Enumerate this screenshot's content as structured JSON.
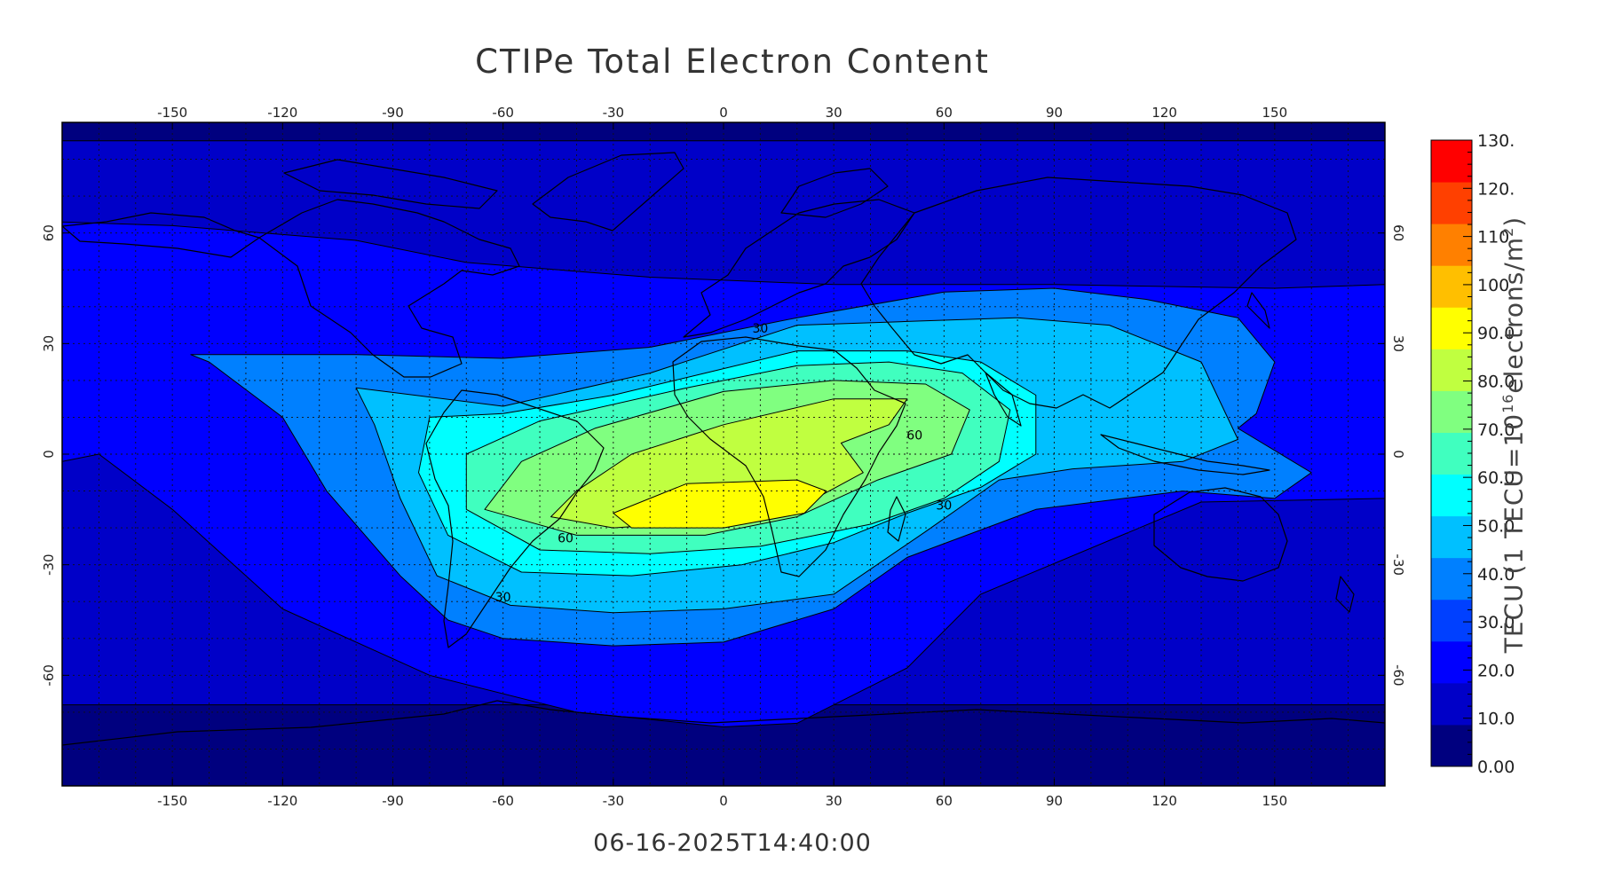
{
  "title": "CTIPe Total Electron Content",
  "timestamp": "06-16-2025T14:40:00",
  "colorbar": {
    "title_prefix": "TECU (1 TECU=10",
    "title_exp": "16",
    "title_mid": "electrons/m",
    "title_exp2": "2",
    "title_suffix": ")",
    "labels": [
      "0.00",
      "10.0",
      "20.0",
      "30.0",
      "40.0",
      "50.0",
      "60.0",
      "70.0",
      "80.0",
      "90.0",
      "100.",
      "110.",
      "120.",
      "130."
    ],
    "range": [
      0,
      130
    ],
    "colors": [
      "#00007f",
      "#0000c8",
      "#0000ff",
      "#0040ff",
      "#0080ff",
      "#00c0ff",
      "#00ffff",
      "#40ffbf",
      "#80ff80",
      "#c0ff40",
      "#ffff00",
      "#ffbf00",
      "#ff8000",
      "#ff4000",
      "#ff0000"
    ]
  },
  "chart_data": {
    "type": "heatmap",
    "title": "CTIPe Total Electron Content",
    "projection": "cylindrical equidistant",
    "x_axis": {
      "range": [
        -180,
        180
      ],
      "ticks": [
        -150,
        -120,
        -90,
        -60,
        -30,
        0,
        30,
        60,
        90,
        120,
        150
      ],
      "tick_labels": [
        "-150",
        "-120",
        "-90",
        "-60",
        "-30",
        "0",
        "30",
        "60",
        "90",
        "120",
        "150"
      ]
    },
    "y_axis": {
      "range": [
        -90,
        90
      ],
      "ticks": [
        -60,
        -30,
        0,
        30,
        60
      ],
      "tick_labels": [
        "-60",
        "-30",
        "0",
        "30",
        "60"
      ]
    },
    "grid": true,
    "contour_levels": [
      10,
      20,
      30,
      40,
      50,
      60,
      70,
      80,
      90
    ],
    "contour_labels": [
      {
        "text": "30",
        "lon": 10,
        "lat": 33
      },
      {
        "text": "60",
        "lon": 52,
        "lat": 4
      },
      {
        "text": "30",
        "lon": 60,
        "lat": -15
      },
      {
        "text": "60",
        "lon": -43,
        "lat": -24
      },
      {
        "text": "30",
        "lon": -60,
        "lat": -40
      }
    ],
    "regions": [
      {
        "level": 0,
        "points": [
          [
            -180,
            90
          ],
          [
            180,
            90
          ],
          [
            180,
            -90
          ],
          [
            -180,
            -90
          ]
        ]
      },
      {
        "level": 10,
        "points": [
          [
            -180,
            85
          ],
          [
            180,
            85
          ],
          [
            180,
            -68
          ],
          [
            -180,
            -68
          ]
        ]
      },
      {
        "level": 20,
        "points": [
          [
            -180,
            63
          ],
          [
            -150,
            62
          ],
          [
            -100,
            58
          ],
          [
            -70,
            52
          ],
          [
            -20,
            48
          ],
          [
            30,
            46
          ],
          [
            90,
            46
          ],
          [
            150,
            45
          ],
          [
            180,
            46
          ],
          [
            180,
            -12
          ],
          [
            130,
            -13
          ],
          [
            70,
            -38
          ],
          [
            50,
            -58
          ],
          [
            20,
            -73
          ],
          [
            0,
            -74
          ],
          [
            -40,
            -70
          ],
          [
            -80,
            -60
          ],
          [
            -120,
            -42
          ],
          [
            -150,
            -15
          ],
          [
            -170,
            0
          ],
          [
            -180,
            -2
          ]
        ]
      },
      {
        "level": 30,
        "points": [
          [
            -145,
            27
          ],
          [
            -100,
            27
          ],
          [
            -60,
            26
          ],
          [
            -20,
            29
          ],
          [
            20,
            37
          ],
          [
            60,
            44
          ],
          [
            90,
            45
          ],
          [
            115,
            42
          ],
          [
            140,
            37
          ],
          [
            150,
            25
          ],
          [
            145,
            11
          ],
          [
            140,
            7
          ],
          [
            160,
            -5
          ],
          [
            150,
            -12
          ],
          [
            125,
            -10
          ],
          [
            85,
            -15
          ],
          [
            50,
            -28
          ],
          [
            30,
            -42
          ],
          [
            0,
            -51
          ],
          [
            -30,
            -52
          ],
          [
            -60,
            -50
          ],
          [
            -75,
            -45
          ],
          [
            -88,
            -33
          ],
          [
            -108,
            -10
          ],
          [
            -120,
            10
          ],
          [
            -140,
            25
          ]
        ]
      },
      {
        "level": 40,
        "points": [
          [
            -100,
            18
          ],
          [
            -60,
            13
          ],
          [
            -20,
            22
          ],
          [
            20,
            35
          ],
          [
            50,
            36
          ],
          [
            80,
            37
          ],
          [
            105,
            35
          ],
          [
            130,
            25
          ],
          [
            140,
            4
          ],
          [
            125,
            -2
          ],
          [
            95,
            -4
          ],
          [
            75,
            -7
          ],
          [
            55,
            -21
          ],
          [
            30,
            -38
          ],
          [
            0,
            -42
          ],
          [
            -30,
            -43
          ],
          [
            -58,
            -41
          ],
          [
            -78,
            -33
          ],
          [
            -88,
            -12
          ],
          [
            -95,
            8
          ]
        ]
      },
      {
        "level": 50,
        "points": [
          [
            -80,
            10
          ],
          [
            -60,
            11
          ],
          [
            -30,
            16
          ],
          [
            -5,
            22
          ],
          [
            20,
            28
          ],
          [
            50,
            28
          ],
          [
            70,
            25
          ],
          [
            85,
            16
          ],
          [
            85,
            0
          ],
          [
            70,
            -9
          ],
          [
            50,
            -16
          ],
          [
            30,
            -24
          ],
          [
            5,
            -30
          ],
          [
            -25,
            -33
          ],
          [
            -55,
            -32
          ],
          [
            -75,
            -22
          ],
          [
            -83,
            -5
          ]
        ]
      },
      {
        "level": 60,
        "points": [
          [
            -70,
            0
          ],
          [
            -50,
            9
          ],
          [
            -10,
            18
          ],
          [
            20,
            24
          ],
          [
            45,
            25
          ],
          [
            65,
            22
          ],
          [
            78,
            12
          ],
          [
            75,
            -2
          ],
          [
            60,
            -12
          ],
          [
            40,
            -19
          ],
          [
            10,
            -25
          ],
          [
            -20,
            -27
          ],
          [
            -50,
            -26
          ],
          [
            -70,
            -15
          ]
        ]
      },
      {
        "level": 70,
        "points": [
          [
            -55,
            -2
          ],
          [
            -35,
            7
          ],
          [
            0,
            17
          ],
          [
            30,
            20
          ],
          [
            55,
            19
          ],
          [
            67,
            12
          ],
          [
            62,
            0
          ],
          [
            42,
            -7
          ],
          [
            20,
            -17
          ],
          [
            -5,
            -22
          ],
          [
            -40,
            -22
          ],
          [
            -65,
            -15
          ]
        ]
      },
      {
        "level": 80,
        "points": [
          [
            -40,
            -10
          ],
          [
            -25,
            0
          ],
          [
            0,
            8
          ],
          [
            30,
            15
          ],
          [
            50,
            15
          ],
          [
            45,
            8
          ],
          [
            32,
            3
          ],
          [
            38,
            -5
          ],
          [
            25,
            -12
          ],
          [
            0,
            -18
          ],
          [
            -30,
            -20
          ],
          [
            -47,
            -17
          ]
        ]
      },
      {
        "level": 90,
        "points": [
          [
            -30,
            -16
          ],
          [
            -10,
            -8
          ],
          [
            20,
            -7
          ],
          [
            28,
            -10
          ],
          [
            22,
            -16
          ],
          [
            0,
            -20
          ],
          [
            -25,
            -20
          ]
        ]
      }
    ]
  }
}
